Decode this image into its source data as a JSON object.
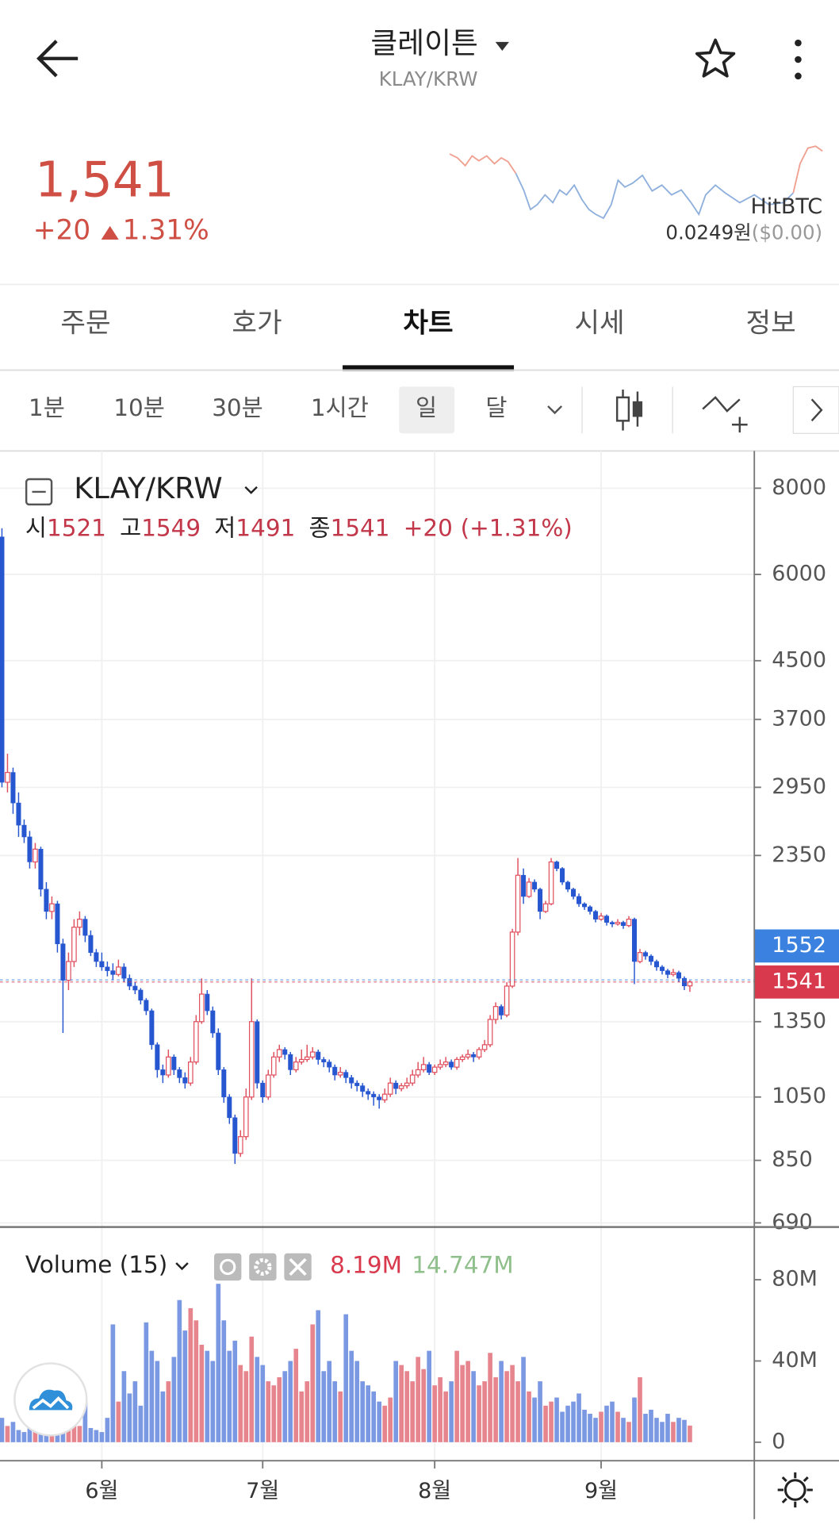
{
  "header": {
    "title": "클레이튼",
    "pair": "KLAY/KRW"
  },
  "price": {
    "last": "1,541",
    "change": "+20",
    "change_pct": "1.31%",
    "exchange": "HitBTC",
    "btc_price": "0.0249원",
    "usd_price": "($0.00)"
  },
  "tabs": [
    "주문",
    "호가",
    "차트",
    "시세",
    "정보"
  ],
  "intervals": [
    "1분",
    "10분",
    "30분",
    "1시간",
    "일",
    "달"
  ],
  "chart_data": [
    {
      "type": "candlestick",
      "title": "KLAY/KRW",
      "log_scale": true,
      "grid": true,
      "colors": {
        "up": "#e0505f",
        "down": "#2757d0"
      },
      "legend": [
        {
          "label": "시",
          "value": 1521
        },
        {
          "label": "고",
          "value": 1549
        },
        {
          "label": "저",
          "value": 1491
        },
        {
          "label": "종",
          "value": 1541
        }
      ],
      "legend_change": "+20",
      "legend_change_pct": "(+1.31%)",
      "price_tags": [
        {
          "value": 1552,
          "color": "#3b82e0"
        },
        {
          "value": 1541,
          "color": "#d8394c"
        }
      ],
      "ylim": [
        685,
        9000
      ],
      "yticks": [
        8000,
        6000,
        4500,
        3700,
        2950,
        2350,
        1350,
        1050,
        850,
        690
      ],
      "ohlc": [
        [
          6800,
          7000,
          2950,
          3000
        ],
        [
          3000,
          3300,
          2900,
          3100
        ],
        [
          3100,
          3150,
          2700,
          2800
        ],
        [
          2800,
          2900,
          2500,
          2600
        ],
        [
          2600,
          2650,
          2450,
          2500
        ],
        [
          2500,
          2550,
          2250,
          2300
        ],
        [
          2300,
          2450,
          2250,
          2400
        ],
        [
          2400,
          2420,
          2050,
          2100
        ],
        [
          2100,
          2150,
          1900,
          1950
        ],
        [
          1950,
          2050,
          1900,
          2000
        ],
        [
          2000,
          2020,
          1700,
          1750
        ],
        [
          1750,
          1780,
          1300,
          1550
        ],
        [
          1550,
          1700,
          1500,
          1650
        ],
        [
          1650,
          1900,
          1620,
          1850
        ],
        [
          1850,
          1950,
          1800,
          1900
        ],
        [
          1900,
          1920,
          1760,
          1800
        ],
        [
          1800,
          1830,
          1680,
          1700
        ],
        [
          1700,
          1720,
          1620,
          1650
        ],
        [
          1650,
          1700,
          1600,
          1620
        ],
        [
          1620,
          1650,
          1570,
          1600
        ],
        [
          1600,
          1640,
          1550,
          1580
        ],
        [
          1580,
          1660,
          1570,
          1620
        ],
        [
          1620,
          1640,
          1540,
          1560
        ],
        [
          1560,
          1580,
          1500,
          1520
        ],
        [
          1520,
          1540,
          1480,
          1500
        ],
        [
          1500,
          1510,
          1430,
          1450
        ],
        [
          1450,
          1460,
          1380,
          1400
        ],
        [
          1400,
          1410,
          1230,
          1250
        ],
        [
          1250,
          1260,
          1120,
          1150
        ],
        [
          1150,
          1170,
          1100,
          1130
        ],
        [
          1130,
          1230,
          1120,
          1200
        ],
        [
          1200,
          1210,
          1130,
          1150
        ],
        [
          1150,
          1160,
          1100,
          1120
        ],
        [
          1120,
          1140,
          1080,
          1100
        ],
        [
          1100,
          1200,
          1090,
          1180
        ],
        [
          1180,
          1380,
          1170,
          1350
        ],
        [
          1350,
          1560,
          1340,
          1480
        ],
        [
          1480,
          1500,
          1380,
          1400
        ],
        [
          1400,
          1420,
          1280,
          1300
        ],
        [
          1300,
          1320,
          1130,
          1150
        ],
        [
          1150,
          1160,
          1030,
          1050
        ],
        [
          1050,
          1060,
          960,
          980
        ],
        [
          980,
          990,
          840,
          870
        ],
        [
          870,
          940,
          860,
          920
        ],
        [
          920,
          1080,
          910,
          1050
        ],
        [
          1050,
          1560,
          1040,
          1350
        ],
        [
          1350,
          1360,
          1080,
          1100
        ],
        [
          1100,
          1110,
          1030,
          1050
        ],
        [
          1050,
          1150,
          1040,
          1130
        ],
        [
          1130,
          1220,
          1120,
          1200
        ],
        [
          1200,
          1250,
          1180,
          1230
        ],
        [
          1230,
          1240,
          1190,
          1210
        ],
        [
          1210,
          1220,
          1130,
          1150
        ],
        [
          1150,
          1200,
          1140,
          1180
        ],
        [
          1180,
          1230,
          1170,
          1190
        ],
        [
          1190,
          1250,
          1180,
          1200
        ],
        [
          1200,
          1240,
          1190,
          1220
        ],
        [
          1220,
          1230,
          1170,
          1190
        ],
        [
          1190,
          1200,
          1160,
          1180
        ],
        [
          1180,
          1190,
          1140,
          1160
        ],
        [
          1160,
          1170,
          1110,
          1130
        ],
        [
          1130,
          1160,
          1120,
          1140
        ],
        [
          1140,
          1150,
          1100,
          1120
        ],
        [
          1120,
          1130,
          1080,
          1100
        ],
        [
          1100,
          1110,
          1070,
          1090
        ],
        [
          1090,
          1100,
          1050,
          1070
        ],
        [
          1070,
          1080,
          1040,
          1060
        ],
        [
          1060,
          1070,
          1020,
          1050
        ],
        [
          1050,
          1060,
          1010,
          1040
        ],
        [
          1040,
          1080,
          1030,
          1060
        ],
        [
          1060,
          1120,
          1050,
          1100
        ],
        [
          1100,
          1110,
          1060,
          1080
        ],
        [
          1080,
          1100,
          1070,
          1090
        ],
        [
          1090,
          1120,
          1080,
          1100
        ],
        [
          1100,
          1150,
          1090,
          1130
        ],
        [
          1130,
          1180,
          1120,
          1150
        ],
        [
          1150,
          1200,
          1140,
          1170
        ],
        [
          1170,
          1180,
          1130,
          1140
        ],
        [
          1140,
          1170,
          1130,
          1160
        ],
        [
          1160,
          1190,
          1150,
          1170
        ],
        [
          1170,
          1200,
          1160,
          1180
        ],
        [
          1180,
          1190,
          1150,
          1160
        ],
        [
          1160,
          1200,
          1150,
          1190
        ],
        [
          1190,
          1210,
          1180,
          1200
        ],
        [
          1200,
          1230,
          1190,
          1210
        ],
        [
          1210,
          1220,
          1180,
          1200
        ],
        [
          1200,
          1240,
          1190,
          1230
        ],
        [
          1230,
          1270,
          1220,
          1250
        ],
        [
          1250,
          1380,
          1240,
          1360
        ],
        [
          1360,
          1440,
          1340,
          1420
        ],
        [
          1420,
          1430,
          1360,
          1380
        ],
        [
          1380,
          1540,
          1370,
          1520
        ],
        [
          1520,
          1840,
          1510,
          1820
        ],
        [
          1820,
          2330,
          1800,
          2200
        ],
        [
          2200,
          2250,
          2000,
          2050
        ],
        [
          2050,
          2180,
          2040,
          2150
        ],
        [
          2150,
          2170,
          2080,
          2100
        ],
        [
          2100,
          2110,
          1900,
          1950
        ],
        [
          1950,
          2020,
          1940,
          2000
        ],
        [
          2000,
          2330,
          1990,
          2300
        ],
        [
          2300,
          2310,
          2230,
          2250
        ],
        [
          2250,
          2260,
          2130,
          2150
        ],
        [
          2150,
          2160,
          2080,
          2100
        ],
        [
          2100,
          2110,
          2030,
          2050
        ],
        [
          2050,
          2070,
          1980,
          2000
        ],
        [
          2000,
          2010,
          1960,
          1980
        ],
        [
          1980,
          1990,
          1930,
          1950
        ],
        [
          1950,
          1960,
          1880,
          1900
        ],
        [
          1900,
          1940,
          1890,
          1920
        ],
        [
          1920,
          1930,
          1860,
          1880
        ],
        [
          1880,
          1890,
          1850,
          1870
        ],
        [
          1870,
          1900,
          1860,
          1880
        ],
        [
          1880,
          1890,
          1840,
          1860
        ],
        [
          1860,
          1920,
          1850,
          1900
        ],
        [
          1900,
          1910,
          1530,
          1650
        ],
        [
          1650,
          1720,
          1640,
          1700
        ],
        [
          1700,
          1710,
          1660,
          1680
        ],
        [
          1680,
          1690,
          1630,
          1650
        ],
        [
          1650,
          1660,
          1600,
          1620
        ],
        [
          1620,
          1630,
          1580,
          1600
        ],
        [
          1600,
          1610,
          1560,
          1580
        ],
        [
          1580,
          1610,
          1570,
          1590
        ],
        [
          1590,
          1600,
          1540,
          1560
        ],
        [
          1560,
          1570,
          1500,
          1521
        ],
        [
          1521,
          1549,
          1491,
          1541
        ]
      ]
    },
    {
      "type": "bar",
      "title": "Volume (15)",
      "colors": {
        "up": "#e7858f",
        "down": "#7b98e2"
      },
      "legend_values": [
        {
          "value": 8.19,
          "label": "8.19M",
          "color": "#d8394c"
        },
        {
          "value": 14.747,
          "label": "14.747M",
          "color": "#8fbf8a"
        }
      ],
      "ylim": [
        0,
        105
      ],
      "yticks": [
        {
          "value": 80,
          "label": "80M"
        },
        {
          "value": 40,
          "label": "40M"
        },
        0
      ],
      "categories": [
        null,
        null,
        null,
        null,
        null,
        null,
        null,
        null,
        null,
        null,
        null,
        null,
        null,
        null,
        null,
        null,
        null,
        null,
        "6월",
        null,
        null,
        null,
        null,
        null,
        null,
        null,
        null,
        null,
        null,
        null,
        null,
        null,
        null,
        null,
        null,
        null,
        null,
        null,
        null,
        null,
        null,
        null,
        null,
        null,
        null,
        null,
        null,
        "7월",
        null,
        null,
        null,
        null,
        null,
        null,
        null,
        null,
        null,
        null,
        null,
        null,
        null,
        null,
        null,
        null,
        null,
        null,
        null,
        null,
        null,
        null,
        null,
        null,
        null,
        null,
        null,
        null,
        null,
        null,
        "8월",
        null,
        null,
        null,
        null,
        null,
        null,
        null,
        null,
        null,
        null,
        null,
        null,
        null,
        null,
        null,
        null,
        null,
        null,
        null,
        null,
        null,
        null,
        null,
        null,
        null,
        null,
        null,
        null,
        null,
        "9월",
        null,
        null,
        null,
        null,
        null,
        null,
        null,
        null,
        null,
        null,
        null,
        null,
        null,
        null,
        null,
        null
      ],
      "values": [
        12,
        8,
        10,
        6,
        5,
        9,
        15,
        8,
        6,
        7,
        10,
        6,
        9,
        14,
        8,
        20,
        7,
        6,
        5,
        12,
        58,
        20,
        35,
        24,
        30,
        18,
        59,
        45,
        40,
        25,
        30,
        42,
        70,
        55,
        66,
        60,
        48,
        45,
        40,
        78,
        60,
        45,
        50,
        38,
        35,
        52,
        42,
        38,
        30,
        28,
        32,
        35,
        40,
        46,
        25,
        30,
        58,
        65,
        35,
        40,
        30,
        25,
        63,
        45,
        40,
        30,
        28,
        25,
        20,
        18,
        22,
        40,
        38,
        35,
        30,
        42,
        36,
        45,
        28,
        32,
        25,
        30,
        45,
        38,
        40,
        35,
        28,
        30,
        44,
        32,
        40,
        35,
        38,
        30,
        42,
        25,
        22,
        30,
        18,
        20,
        22,
        15,
        18,
        20,
        24,
        16,
        14,
        12,
        15,
        18,
        20,
        15,
        12,
        10,
        22,
        32,
        14,
        16,
        12,
        10,
        14,
        10,
        12,
        11,
        8.19
      ]
    }
  ]
}
